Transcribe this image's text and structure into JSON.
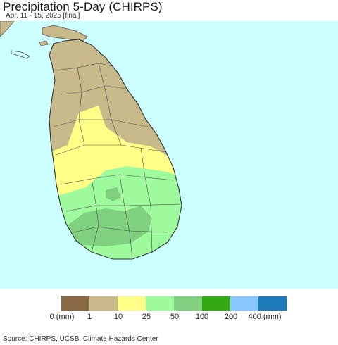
{
  "header": {
    "title": "Precipitation 5-Day (CHIRPS)",
    "subtitle": "Apr. 11 - 15, 2025 [final]"
  },
  "map": {
    "ocean_color": "#ccffff",
    "border_color": "#4a4a4a",
    "region_colors": {
      "0-1_mm": "#c8b98a",
      "10-25_mm": "#ffff88",
      "25-50_mm": "#9dfb9d",
      "50-100_mm": "#7fd17f",
      "no_rain": "#8a6a45"
    }
  },
  "legend": {
    "colors": [
      "#8a6a45",
      "#c8b98a",
      "#ffff88",
      "#9dfb9d",
      "#7fd17f",
      "#33aa11",
      "#88c8ff",
      "#1c7ab8"
    ],
    "labels": [
      "0 (mm)",
      "1",
      "10",
      "25",
      "50",
      "100",
      "200",
      "400 (mm)"
    ]
  },
  "footer": {
    "source": "Source: CHIRPS, UCSB, Climate Hazards Center"
  }
}
